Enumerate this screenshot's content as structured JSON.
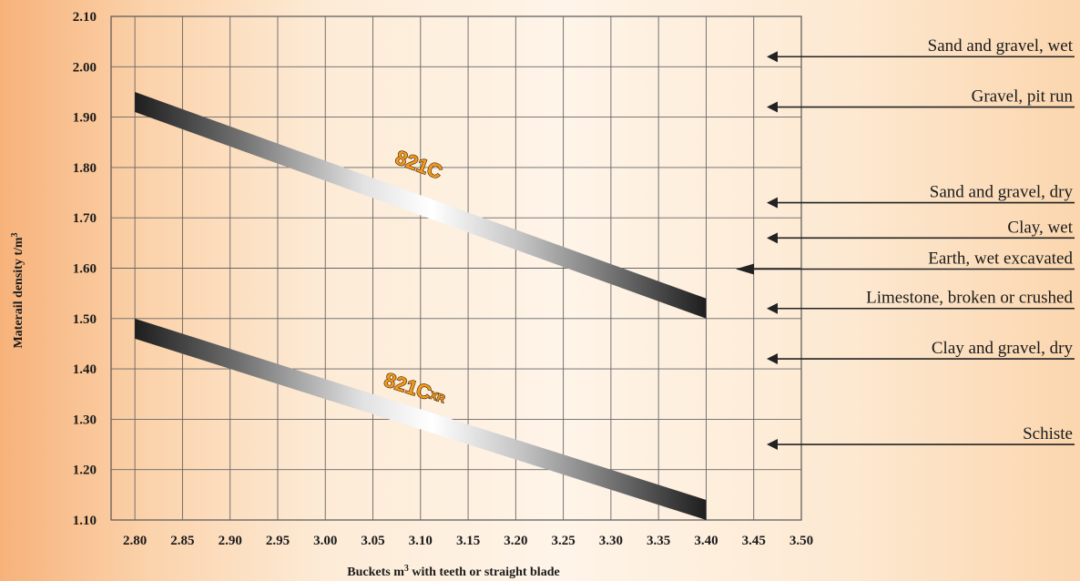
{
  "chart_data": {
    "type": "line",
    "ylabel": "Materail density t/m",
    "ylabel_sup": "3",
    "xlabel_pre": "Buckets m",
    "xlabel_sup": "3",
    "xlabel_post": " with teeth or straight blade",
    "x_ticks": [
      "2.80",
      "2.85",
      "2.90",
      "2.95",
      "3.00",
      "3.05",
      "3.10",
      "3.15",
      "3.20",
      "3.25",
      "3.30",
      "3.35",
      "3.40",
      "3.45",
      "3.50"
    ],
    "y_ticks": [
      "2.10",
      "2.00",
      "1.90",
      "1.80",
      "1.70",
      "1.60",
      "1.50",
      "1.40",
      "1.30",
      "1.20",
      "1.10"
    ],
    "xlim": [
      2.775,
      3.5
    ],
    "ylim": [
      1.1,
      2.1
    ],
    "grid": true,
    "series": [
      {
        "name": "821C",
        "x": [
          2.8,
          3.4
        ],
        "y": [
          1.93,
          1.52
        ]
      },
      {
        "name": "821C",
        "name_suffix": "XR",
        "x": [
          2.8,
          3.4
        ],
        "y": [
          1.48,
          1.12
        ]
      }
    ],
    "materials": [
      {
        "label": "Sand and gravel, wet",
        "density": 2.02
      },
      {
        "label": "Gravel, pit run",
        "density": 1.92
      },
      {
        "label": "Sand and gravel, dry",
        "density": 1.73
      },
      {
        "label": "Clay, wet",
        "density": 1.66
      },
      {
        "label": "Earth, wet excavated",
        "density": 1.6
      },
      {
        "label": "Limestone, broken or crushed",
        "density": 1.52
      },
      {
        "label": "Clay and gravel, dry",
        "density": 1.42
      },
      {
        "label": "Schiste",
        "density": 1.25
      }
    ]
  }
}
